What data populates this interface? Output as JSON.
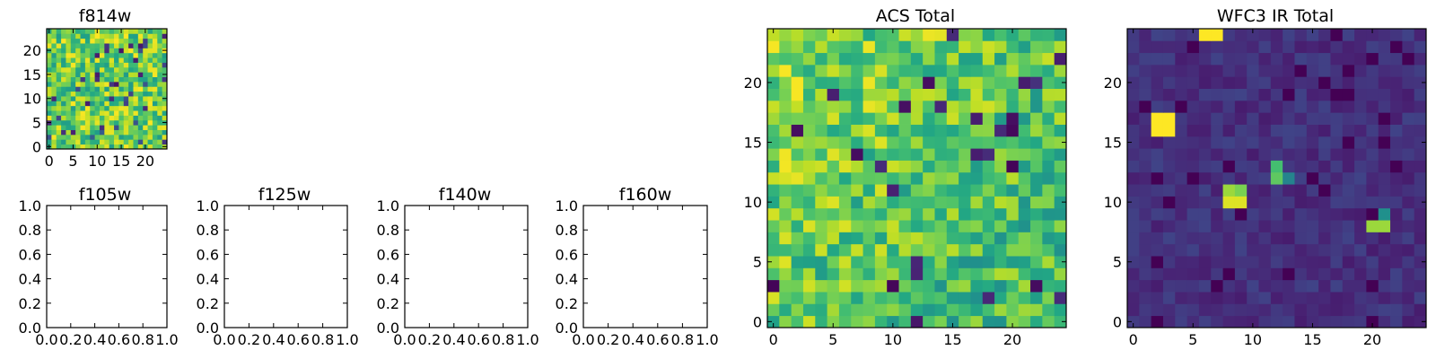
{
  "chart_data": [
    {
      "type": "heatmap",
      "id": "f814w",
      "title": "f814w",
      "grid_size": 25,
      "colormap": "viridis",
      "xticks": [
        "0",
        "5",
        "10",
        "15",
        "20"
      ],
      "yticks": [
        "0",
        "5",
        "10",
        "15",
        "20"
      ],
      "value_range": [
        0,
        1
      ],
      "description_seed": 814
    },
    {
      "type": "empty",
      "id": "f105w",
      "title": "f105w",
      "xlim": [
        0,
        1
      ],
      "ylim": [
        0,
        1
      ],
      "xticks": [
        "0.0",
        "0.2",
        "0.4",
        "0.6",
        "0.8",
        "1.0"
      ],
      "yticks": [
        "0.0",
        "0.2",
        "0.4",
        "0.6",
        "0.8",
        "1.0"
      ]
    },
    {
      "type": "empty",
      "id": "f125w",
      "title": "f125w",
      "xlim": [
        0,
        1
      ],
      "ylim": [
        0,
        1
      ],
      "xticks": [
        "0.0",
        "0.2",
        "0.4",
        "0.6",
        "0.8",
        "1.0"
      ],
      "yticks": [
        "0.0",
        "0.2",
        "0.4",
        "0.6",
        "0.8",
        "1.0"
      ]
    },
    {
      "type": "empty",
      "id": "f140w",
      "title": "f140w",
      "xlim": [
        0,
        1
      ],
      "ylim": [
        0,
        1
      ],
      "xticks": [
        "0.0",
        "0.2",
        "0.4",
        "0.6",
        "0.8",
        "1.0"
      ],
      "yticks": [
        "0.0",
        "0.2",
        "0.4",
        "0.6",
        "0.8",
        "1.0"
      ]
    },
    {
      "type": "empty",
      "id": "f160w",
      "title": "f160w",
      "xlim": [
        0,
        1
      ],
      "ylim": [
        0,
        1
      ],
      "xticks": [
        "0.0",
        "0.2",
        "0.4",
        "0.6",
        "0.8",
        "1.0"
      ],
      "yticks": [
        "0.0",
        "0.2",
        "0.4",
        "0.6",
        "0.8",
        "1.0"
      ]
    },
    {
      "type": "heatmap",
      "id": "acs-total",
      "title": "ACS Total",
      "grid_size": 25,
      "colormap": "viridis",
      "xticks": [
        "0",
        "5",
        "10",
        "15",
        "20"
      ],
      "yticks": [
        "0",
        "5",
        "10",
        "15",
        "20"
      ],
      "value_range": [
        0,
        1
      ],
      "description_seed": 4242
    },
    {
      "type": "heatmap",
      "id": "wfc3-ir-total",
      "title": "WFC3 IR Total",
      "grid_size": 25,
      "colormap": "viridis",
      "xticks": [
        "0",
        "5",
        "10",
        "15",
        "20"
      ],
      "yticks": [
        "0",
        "5",
        "10",
        "15",
        "20"
      ],
      "value_range": [
        0,
        1
      ],
      "background_level": 0.08,
      "hot_pixels": [
        {
          "x": 6,
          "y": 24,
          "value": 1.0
        },
        {
          "x": 7,
          "y": 24,
          "value": 1.0
        },
        {
          "x": 2,
          "y": 16,
          "value": 1.0
        },
        {
          "x": 3,
          "y": 16,
          "value": 1.0
        },
        {
          "x": 2,
          "y": 17,
          "value": 1.0
        },
        {
          "x": 3,
          "y": 17,
          "value": 1.0
        },
        {
          "x": 12,
          "y": 12,
          "value": 0.75
        },
        {
          "x": 12,
          "y": 13,
          "value": 0.7
        },
        {
          "x": 13,
          "y": 12,
          "value": 0.45
        },
        {
          "x": 8,
          "y": 10,
          "value": 0.95
        },
        {
          "x": 9,
          "y": 10,
          "value": 0.95
        },
        {
          "x": 8,
          "y": 11,
          "value": 0.85
        },
        {
          "x": 9,
          "y": 11,
          "value": 0.8
        },
        {
          "x": 20,
          "y": 8,
          "value": 0.85
        },
        {
          "x": 21,
          "y": 8,
          "value": 0.85
        },
        {
          "x": 21,
          "y": 9,
          "value": 0.5
        }
      ],
      "description_seed": 160
    }
  ]
}
